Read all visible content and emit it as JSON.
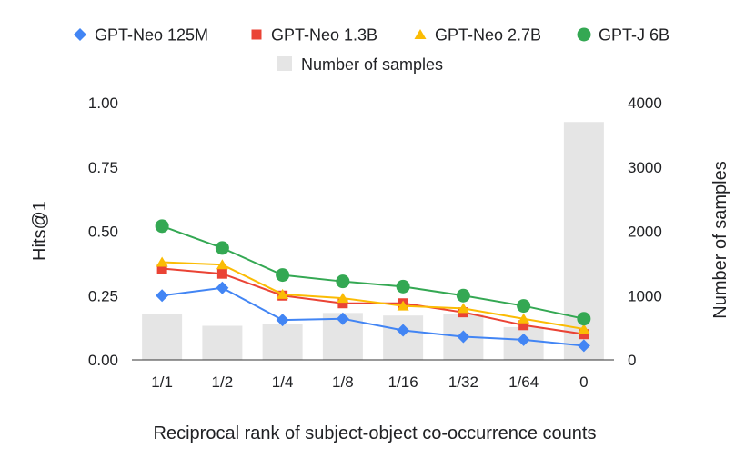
{
  "chart_data": {
    "type": "line",
    "categories": [
      "1/1",
      "1/2",
      "1/4",
      "1/8",
      "1/16",
      "1/32",
      "1/64",
      "0"
    ],
    "xlabel": "Reciprocal rank of subject-object co-occurrence counts",
    "ylabel": "Hits@1",
    "y2label": "Number of samples",
    "ylim": [
      0,
      1
    ],
    "yticks": [
      "0.00",
      "0.25",
      "0.50",
      "0.75",
      "1.00"
    ],
    "y2lim": [
      0,
      4000
    ],
    "y2ticks": [
      "0",
      "1000",
      "2000",
      "3000",
      "4000"
    ],
    "legend_position": "top",
    "grid": false,
    "series": [
      {
        "name": "GPT-Neo 125M",
        "type": "line",
        "marker": "diamond",
        "color": "#4285f4",
        "values": [
          0.25,
          0.28,
          0.155,
          0.16,
          0.115,
          0.09,
          0.078,
          0.055
        ]
      },
      {
        "name": "GPT-Neo 1.3B",
        "type": "line",
        "marker": "square",
        "color": "#ea4335",
        "values": [
          0.355,
          0.335,
          0.25,
          0.22,
          0.22,
          0.185,
          0.135,
          0.1
        ]
      },
      {
        "name": "GPT-Neo 2.7B",
        "type": "line",
        "marker": "triangle",
        "color": "#fbbc04",
        "values": [
          0.38,
          0.37,
          0.255,
          0.24,
          0.21,
          0.2,
          0.16,
          0.12
        ]
      },
      {
        "name": "GPT-J 6B",
        "type": "line",
        "marker": "circle",
        "color": "#34a853",
        "values": [
          0.52,
          0.435,
          0.33,
          0.305,
          0.285,
          0.25,
          0.21,
          0.16
        ]
      },
      {
        "name": "Number of samples",
        "type": "bar",
        "axis": "right",
        "color": "#e5e5e5",
        "values": [
          720,
          530,
          560,
          730,
          690,
          710,
          510,
          3700
        ]
      }
    ]
  }
}
